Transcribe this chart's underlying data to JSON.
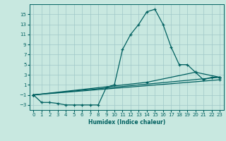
{
  "title": "",
  "xlabel": "Humidex (Indice chaleur)",
  "bg_color": "#c8e8e0",
  "line_color": "#006060",
  "grid_color": "#a0c8c8",
  "xlim": [
    -0.5,
    23.5
  ],
  "ylim": [
    -4,
    17
  ],
  "xticks": [
    0,
    1,
    2,
    3,
    4,
    5,
    6,
    7,
    8,
    9,
    10,
    11,
    12,
    13,
    14,
    15,
    16,
    17,
    18,
    19,
    20,
    21,
    22,
    23
  ],
  "yticks": [
    -3,
    -1,
    1,
    3,
    5,
    7,
    9,
    11,
    13,
    15
  ],
  "line1_x": [
    0,
    1,
    2,
    3,
    4,
    5,
    6,
    7,
    8,
    9,
    10,
    11,
    12,
    13,
    14,
    15,
    16,
    17,
    18,
    19,
    20,
    21,
    22,
    23
  ],
  "line1_y": [
    -1,
    -2.5,
    -2.5,
    -2.7,
    -3,
    -3,
    -3,
    -3,
    -3,
    0.5,
    1,
    8,
    11,
    13,
    15.5,
    16,
    13,
    8.5,
    5,
    5,
    3.5,
    2,
    2.5,
    2.5
  ],
  "line2_x": [
    0,
    23
  ],
  "line2_y": [
    -1,
    2.5
  ],
  "line3_x": [
    0,
    23
  ],
  "line3_y": [
    -1,
    2.0
  ],
  "line4_x": [
    0,
    14,
    20,
    23
  ],
  "line4_y": [
    -1,
    1.5,
    3.5,
    2.5
  ]
}
